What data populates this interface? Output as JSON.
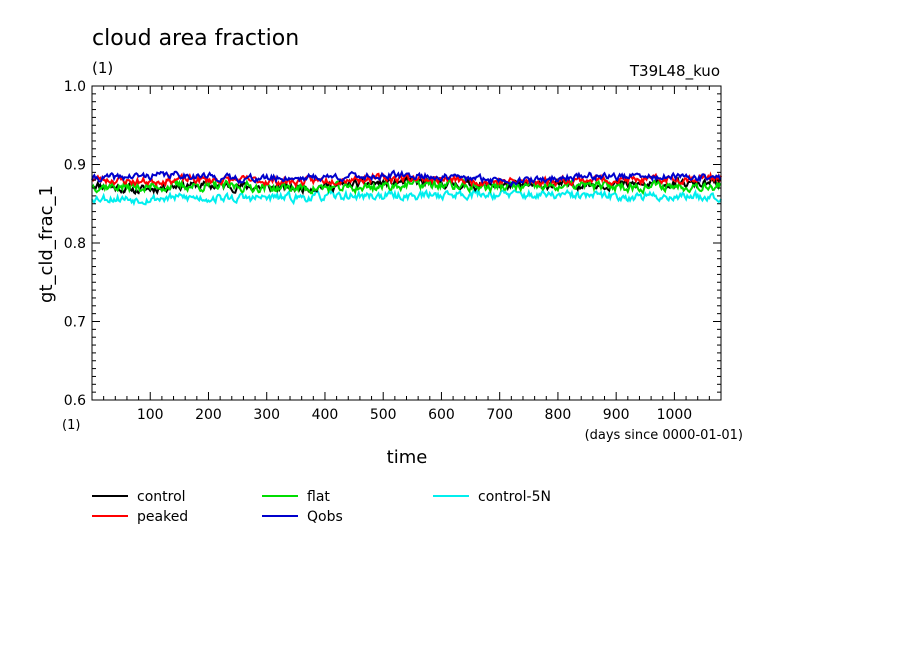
{
  "header": {
    "title": "cloud area fraction",
    "units": "(1)",
    "experiment": "T39L48_kuo"
  },
  "colors": {
    "control": "#000000",
    "peaked": "#ff0000",
    "flat": "#00dd00",
    "Qobs": "#0000cc",
    "control-5N": "#00eeee"
  },
  "chart_data": {
    "type": "line",
    "title": "cloud area fraction",
    "xlabel": "time",
    "x_units": "(days since 0000-01-01)",
    "ylabel": "gt_cld_frac_1",
    "y_units": "(1)",
    "xlim": [
      0,
      1080
    ],
    "ylim": [
      0.6,
      1.0
    ],
    "x_ticks": [
      100,
      200,
      300,
      400,
      500,
      600,
      700,
      800,
      900,
      1000
    ],
    "x_tick_labels": [
      "100",
      "200",
      "300",
      "400",
      "500",
      "600",
      "700",
      "800",
      "900",
      "1000"
    ],
    "y_ticks": [
      0.6,
      0.7,
      0.8,
      0.9,
      1.0
    ],
    "y_tick_labels": [
      "0.6",
      "0.7",
      "0.8",
      "0.9",
      "1.0"
    ],
    "legend_position": "bottom",
    "series": [
      {
        "name": "control",
        "color": "#000000",
        "mean": 0.874,
        "amplitude": 0.01,
        "seed": 11,
        "x": [
          0,
          80,
          150,
          250,
          350,
          450,
          550,
          650,
          750,
          850,
          950,
          1080
        ],
        "y": [
          0.875,
          0.867,
          0.874,
          0.872,
          0.87,
          0.875,
          0.878,
          0.874,
          0.873,
          0.875,
          0.874,
          0.876
        ]
      },
      {
        "name": "peaked",
        "color": "#ff0000",
        "mean": 0.88,
        "amplitude": 0.009,
        "seed": 23,
        "x": [
          0,
          80,
          150,
          250,
          350,
          450,
          550,
          650,
          750,
          850,
          950,
          1080
        ],
        "y": [
          0.882,
          0.878,
          0.881,
          0.88,
          0.878,
          0.882,
          0.883,
          0.879,
          0.878,
          0.881,
          0.88,
          0.884
        ]
      },
      {
        "name": "flat",
        "color": "#00dd00",
        "mean": 0.872,
        "amplitude": 0.011,
        "seed": 37,
        "x": [
          0,
          80,
          150,
          250,
          350,
          450,
          550,
          650,
          750,
          850,
          950,
          1080
        ],
        "y": [
          0.873,
          0.871,
          0.873,
          0.872,
          0.87,
          0.87,
          0.875,
          0.872,
          0.871,
          0.873,
          0.872,
          0.874
        ]
      },
      {
        "name": "Qobs",
        "color": "#0000cc",
        "mean": 0.884,
        "amplitude": 0.008,
        "seed": 41,
        "x": [
          0,
          80,
          150,
          250,
          350,
          450,
          550,
          650,
          750,
          850,
          950,
          1080
        ],
        "y": [
          0.882,
          0.885,
          0.887,
          0.882,
          0.883,
          0.885,
          0.886,
          0.882,
          0.879,
          0.886,
          0.884,
          0.883
        ]
      },
      {
        "name": "control-5N",
        "color": "#00eeee",
        "mean": 0.86,
        "amplitude": 0.01,
        "seed": 53,
        "x": [
          0,
          80,
          150,
          250,
          350,
          450,
          550,
          650,
          750,
          850,
          950,
          1080
        ],
        "y": [
          0.858,
          0.856,
          0.858,
          0.857,
          0.858,
          0.86,
          0.86,
          0.863,
          0.861,
          0.86,
          0.859,
          0.86
        ]
      }
    ]
  }
}
